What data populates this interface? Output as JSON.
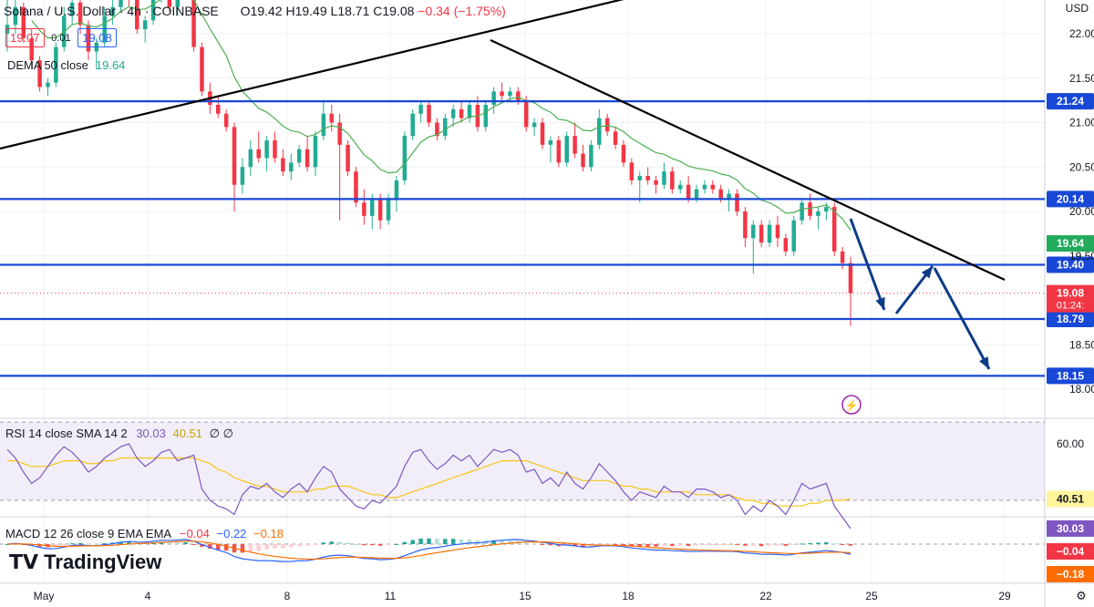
{
  "header": {
    "symbol": "Solana / U.S. Dollar · 4h · COINBASE",
    "open": "O19.42",
    "high": "H19.49",
    "low": "L18.71",
    "close": "C19.08",
    "change": "−0.34 (−1.75%)",
    "bid": "19.07",
    "spread": "0.01",
    "ask": "19.08",
    "dema_label": "DEMA 50 close",
    "dema_value": "19.64",
    "currency": "USD"
  },
  "colors": {
    "up": "#22ab94",
    "down": "#f23645",
    "level": "#1848d6",
    "trend": "#000000",
    "arrow": "#0d3c86",
    "dema": "#4caf50",
    "rsi": "#7e57c2",
    "rsi_ma": "#f5c518",
    "macd": "#2962ff",
    "signal": "#ff6d00"
  },
  "chart_data": {
    "type": "candlestick",
    "y_ticks": [
      "22.00",
      "21.50",
      "21.00",
      "20.50",
      "20.00",
      "19.50",
      "18.50",
      "18.00"
    ],
    "x_ticks": [
      "May",
      "4",
      "8",
      "11",
      "15",
      "18",
      "22",
      "25",
      "29"
    ],
    "levels": [
      21.24,
      20.14,
      19.4,
      18.79,
      18.15
    ],
    "level_labels": [
      "21.24",
      "20.14",
      "19.40",
      "18.79",
      "18.15"
    ],
    "dema_badge": "19.64",
    "last_price": "19.08",
    "countdown": "01:24:",
    "candles": [
      [
        22.0,
        22.4,
        21.8,
        22.1
      ],
      [
        22.1,
        22.5,
        22.0,
        22.3
      ],
      [
        22.3,
        22.35,
        21.9,
        21.95
      ],
      [
        21.95,
        22.05,
        21.6,
        21.7
      ],
      [
        21.7,
        21.75,
        21.35,
        21.4
      ],
      [
        21.4,
        21.5,
        21.3,
        21.45
      ],
      [
        21.45,
        21.9,
        21.4,
        21.85
      ],
      [
        21.85,
        22.3,
        21.8,
        22.2
      ],
      [
        22.2,
        22.5,
        22.1,
        22.35
      ],
      [
        22.35,
        22.4,
        22.0,
        22.1
      ],
      [
        22.1,
        22.15,
        21.7,
        21.8
      ],
      [
        21.8,
        21.95,
        21.6,
        21.9
      ],
      [
        21.9,
        22.3,
        21.85,
        22.2
      ],
      [
        22.2,
        22.45,
        22.1,
        22.3
      ],
      [
        22.3,
        22.6,
        22.25,
        22.5
      ],
      [
        22.5,
        22.6,
        22.3,
        22.4
      ],
      [
        22.4,
        22.45,
        22.0,
        22.05
      ],
      [
        22.05,
        22.2,
        21.9,
        22.15
      ],
      [
        22.15,
        22.5,
        22.1,
        22.45
      ],
      [
        22.45,
        22.6,
        22.35,
        22.55
      ],
      [
        22.55,
        22.6,
        22.25,
        22.3
      ],
      [
        22.3,
        22.5,
        22.2,
        22.45
      ],
      [
        22.45,
        22.6,
        22.4,
        22.55
      ],
      [
        22.55,
        22.6,
        21.8,
        21.85
      ],
      [
        21.85,
        21.9,
        21.3,
        21.35
      ],
      [
        21.35,
        21.45,
        21.1,
        21.2
      ],
      [
        21.2,
        21.3,
        21.05,
        21.1
      ],
      [
        21.1,
        21.15,
        20.9,
        20.95
      ],
      [
        20.95,
        21.0,
        20.0,
        20.3
      ],
      [
        20.3,
        20.6,
        20.2,
        20.5
      ],
      [
        20.5,
        20.8,
        20.4,
        20.7
      ],
      [
        20.7,
        20.9,
        20.55,
        20.6
      ],
      [
        20.6,
        20.85,
        20.45,
        20.8
      ],
      [
        20.8,
        20.9,
        20.55,
        20.6
      ],
      [
        20.6,
        20.7,
        20.4,
        20.45
      ],
      [
        20.45,
        20.65,
        20.35,
        20.55
      ],
      [
        20.55,
        20.75,
        20.5,
        20.7
      ],
      [
        20.7,
        20.85,
        20.45,
        20.5
      ],
      [
        20.5,
        20.9,
        20.4,
        20.85
      ],
      [
        20.85,
        21.25,
        20.8,
        21.1
      ],
      [
        21.1,
        21.2,
        20.9,
        21.0
      ],
      [
        21.0,
        21.1,
        19.9,
        20.75
      ],
      [
        20.75,
        20.8,
        20.4,
        20.45
      ],
      [
        20.45,
        20.5,
        20.05,
        20.1
      ],
      [
        20.1,
        20.25,
        19.85,
        19.95
      ],
      [
        19.95,
        20.2,
        19.8,
        20.15
      ],
      [
        20.15,
        20.2,
        19.8,
        19.9
      ],
      [
        19.9,
        20.2,
        19.85,
        20.15
      ],
      [
        20.15,
        20.4,
        20.0,
        20.35
      ],
      [
        20.35,
        20.9,
        20.3,
        20.85
      ],
      [
        20.85,
        21.15,
        20.8,
        21.1
      ],
      [
        21.1,
        21.25,
        21.0,
        21.2
      ],
      [
        21.2,
        21.25,
        20.95,
        21.0
      ],
      [
        21.0,
        21.05,
        20.8,
        20.85
      ],
      [
        20.85,
        21.1,
        20.8,
        21.05
      ],
      [
        21.05,
        21.2,
        20.95,
        21.15
      ],
      [
        21.15,
        21.25,
        21.0,
        21.05
      ],
      [
        21.05,
        21.25,
        21.0,
        21.2
      ],
      [
        21.2,
        21.3,
        20.9,
        20.95
      ],
      [
        20.95,
        21.25,
        20.9,
        21.2
      ],
      [
        21.2,
        21.4,
        21.1,
        21.35
      ],
      [
        21.35,
        21.45,
        21.25,
        21.3
      ],
      [
        21.3,
        21.4,
        21.25,
        21.35
      ],
      [
        21.35,
        21.4,
        21.2,
        21.25
      ],
      [
        21.25,
        21.3,
        20.9,
        20.95
      ],
      [
        20.95,
        21.05,
        20.85,
        21.0
      ],
      [
        21.0,
        21.05,
        20.7,
        20.75
      ],
      [
        20.75,
        20.85,
        20.55,
        20.8
      ],
      [
        20.8,
        20.85,
        20.5,
        20.55
      ],
      [
        20.55,
        20.9,
        20.5,
        20.85
      ],
      [
        20.85,
        21.0,
        20.6,
        20.65
      ],
      [
        20.65,
        20.75,
        20.45,
        20.5
      ],
      [
        20.5,
        20.8,
        20.45,
        20.75
      ],
      [
        20.75,
        21.15,
        20.7,
        21.05
      ],
      [
        21.05,
        21.1,
        20.85,
        20.9
      ],
      [
        20.9,
        20.95,
        20.7,
        20.75
      ],
      [
        20.75,
        20.8,
        20.5,
        20.55
      ],
      [
        20.55,
        20.6,
        20.3,
        20.35
      ],
      [
        20.35,
        20.45,
        20.1,
        20.4
      ],
      [
        20.4,
        20.5,
        20.3,
        20.35
      ],
      [
        20.35,
        20.4,
        20.2,
        20.3
      ],
      [
        20.3,
        20.55,
        20.25,
        20.45
      ],
      [
        20.45,
        20.5,
        20.2,
        20.25
      ],
      [
        20.25,
        20.35,
        20.2,
        20.3
      ],
      [
        20.3,
        20.4,
        20.1,
        20.15
      ],
      [
        20.15,
        20.3,
        20.1,
        20.25
      ],
      [
        20.25,
        20.35,
        20.2,
        20.3
      ],
      [
        20.3,
        20.35,
        20.2,
        20.25
      ],
      [
        20.25,
        20.3,
        20.1,
        20.15
      ],
      [
        20.15,
        20.25,
        20.0,
        20.2
      ],
      [
        20.2,
        20.25,
        19.95,
        20.0
      ],
      [
        20.0,
        20.05,
        19.6,
        19.7
      ],
      [
        19.7,
        19.9,
        19.3,
        19.85
      ],
      [
        19.85,
        19.9,
        19.6,
        19.65
      ],
      [
        19.65,
        19.9,
        19.6,
        19.85
      ],
      [
        19.85,
        19.95,
        19.6,
        19.7
      ],
      [
        19.7,
        19.75,
        19.5,
        19.55
      ],
      [
        19.55,
        19.95,
        19.5,
        19.9
      ],
      [
        19.9,
        20.15,
        19.85,
        20.1
      ],
      [
        20.1,
        20.2,
        19.9,
        19.95
      ],
      [
        19.95,
        20.05,
        19.8,
        20.0
      ],
      [
        20.0,
        20.1,
        19.9,
        20.05
      ],
      [
        20.05,
        20.1,
        19.5,
        19.55
      ],
      [
        19.55,
        19.6,
        19.35,
        19.42
      ],
      [
        19.42,
        19.49,
        18.71,
        19.08
      ]
    ],
    "rsi": {
      "label": "RSI 14 close SMA 14 2",
      "value": "30.03",
      "ma": "40.51",
      "extra": "∅ ∅",
      "ticks": [
        "60.00"
      ],
      "series": [
        58,
        55,
        50,
        46,
        48,
        52,
        56,
        59,
        57,
        54,
        50,
        52,
        55,
        57,
        59,
        60,
        55,
        52,
        54,
        57,
        58,
        54,
        55,
        56,
        44,
        40,
        38,
        37,
        35,
        42,
        45,
        44,
        46,
        43,
        41,
        44,
        46,
        43,
        48,
        52,
        50,
        44,
        41,
        38,
        37,
        40,
        39,
        42,
        45,
        52,
        57,
        58,
        54,
        51,
        53,
        56,
        54,
        56,
        52,
        55,
        58,
        57,
        58,
        56,
        50,
        51,
        46,
        48,
        45,
        50,
        46,
        44,
        48,
        53,
        50,
        47,
        43,
        40,
        43,
        42,
        41,
        45,
        43,
        43,
        41,
        44,
        44,
        43,
        41,
        42,
        40,
        35,
        38,
        36,
        40,
        38,
        35,
        40,
        46,
        44,
        45,
        46,
        38,
        34,
        30
      ],
      "ma_series": [
        54,
        54,
        53,
        52,
        52,
        52,
        53,
        54,
        54,
        54,
        53,
        53,
        54,
        54,
        55,
        55,
        55,
        55,
        55,
        55,
        55,
        55,
        55,
        55,
        54,
        53,
        51,
        50,
        48,
        47,
        46,
        45,
        45,
        44,
        43,
        43,
        43,
        43,
        44,
        44,
        45,
        45,
        45,
        44,
        43,
        42,
        42,
        41,
        41,
        42,
        43,
        44,
        45,
        46,
        47,
        48,
        49,
        50,
        51,
        52,
        53,
        54,
        54,
        54,
        54,
        53,
        52,
        51,
        50,
        49,
        48,
        47,
        47,
        47,
        47,
        46,
        45,
        45,
        44,
        44,
        43,
        43,
        43,
        43,
        43,
        42,
        42,
        42,
        42,
        42,
        41,
        40,
        40,
        39,
        39,
        38,
        38,
        38,
        38,
        39,
        39,
        40,
        40,
        40,
        40.5
      ]
    },
    "macd": {
      "label": "MACD 12 26 close 9 EMA EMA",
      "hist": "−0.04",
      "macd": "−0.22",
      "signal": "−0.18",
      "badge1": "−0.04",
      "badge2": "−0.18"
    },
    "watermark": "TradingView"
  }
}
